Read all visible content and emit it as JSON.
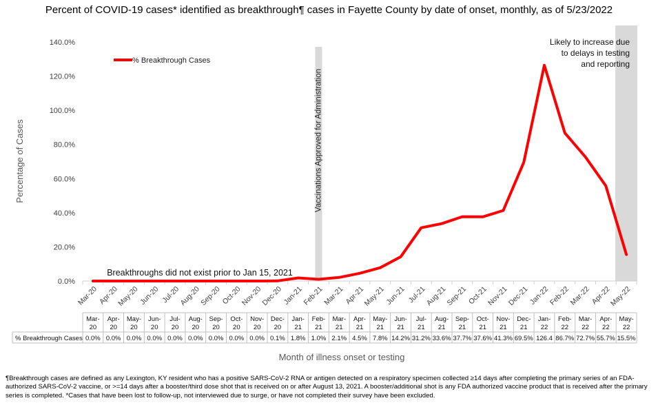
{
  "chart_data": {
    "type": "line",
    "title": "Percent of COVID-19 cases* identified as breakthrough¶ cases in Fayette County by date of onset, monthly, as of 5/23/2022",
    "xlabel": "Month of illness onset or testing",
    "ylabel": "Percentage of Cases",
    "ylim": [
      0,
      140
    ],
    "yticks": [
      "0.0%",
      "20.0%",
      "40.0%",
      "60.0%",
      "80.0%",
      "100.0%",
      "120.0%",
      "140.0%"
    ],
    "grid": false,
    "legend_position": "top-left",
    "categories": [
      "Mar-20",
      "Apr-20",
      "May-20",
      "Jun-20",
      "Jul-20",
      "Aug-20",
      "Sep-20",
      "Oct-20",
      "Nov-20",
      "Dec-20",
      "Jan-21",
      "Feb-21",
      "Mar-21",
      "Apr-21",
      "May-21",
      "Jun-21",
      "Jul-21",
      "Aug-21",
      "Sep-21",
      "Oct-21",
      "Nov-21",
      "Dec-21",
      "Jan-22",
      "Feb-22",
      "Mar-22",
      "Apr-22",
      "May-22"
    ],
    "series": [
      {
        "name": "% Breakthrough Cases",
        "color": "#ff0000",
        "values": [
          0.0,
          0.0,
          0.0,
          0.0,
          0.0,
          0.0,
          0.0,
          0.0,
          0.0,
          0.1,
          1.8,
          1.0,
          2.1,
          4.5,
          7.8,
          14.2,
          31.2,
          33.6,
          37.7,
          37.6,
          41.3,
          69.5,
          126.4,
          86.7,
          72.7,
          55.7,
          15.5
        ]
      }
    ],
    "table_row_label": "% Breakthrough Cases",
    "table_values": [
      "0.0%",
      "0.0%",
      "0.0%",
      "0.0%",
      "0.0%",
      "0.0%",
      "0.0%",
      "0.0%",
      "0.0%",
      "0.1%",
      "1.8%",
      "1.0%",
      "2.1%",
      "4.5%",
      "7.8%",
      "14.2%",
      "31.2%",
      "33.6%",
      "37.7%",
      "37.6%",
      "41.3%",
      "69.5%",
      "126.4",
      "86.7%",
      "72.7%",
      "55.7%",
      "15.5%"
    ],
    "annotations": {
      "vaccination": "Vaccinations Approved for Administration",
      "vaccination_category": "Feb-21",
      "pre_breakthrough": "Breakthroughs did not exist prior to Jan 15, 2021",
      "likely_increase": "Likely to increase due to delays in testing and reporting",
      "shaded_category": "May-22"
    },
    "colors": {
      "line": "#ff0000",
      "band": "#d9d9d9",
      "axis": "#d0d0d0"
    }
  },
  "footnote": "¶Breakthrough cases are defined as any Lexington, KY resident who has a positive SARS-CoV-2 RNA or antigen detected on a respiratory specimen collected ≥14 days after completing the primary series of an FDA-authorized SARS-CoV-2 vaccine, or >=14 days after a booster/third dose shot that is received on or after August 13, 2021.  A booster/additional shot is any FDA authorized vaccine product that is received after the primary series is completed. *Cases that have been lost to follow-up, not interviewed due to surge, or have not completed their survey have been excluded."
}
